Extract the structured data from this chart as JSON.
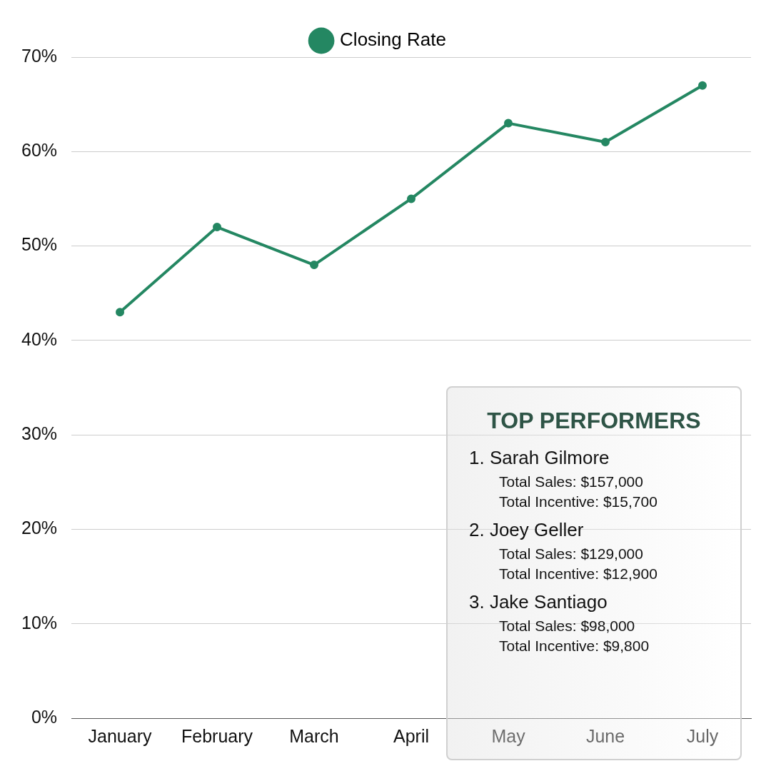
{
  "chart_data": {
    "type": "line",
    "categories": [
      "January",
      "February",
      "March",
      "April",
      "May",
      "June",
      "July"
    ],
    "series": [
      {
        "name": "Closing Rate",
        "color": "#248762",
        "values": [
          43,
          52,
          48,
          55,
          63,
          61,
          67
        ]
      }
    ],
    "ylim": [
      0,
      70
    ],
    "yticks": [
      {
        "value": 0,
        "label": "0%"
      },
      {
        "value": 10,
        "label": "10%"
      },
      {
        "value": 20,
        "label": "20%"
      },
      {
        "value": 30,
        "label": "30%"
      },
      {
        "value": 40,
        "label": "40%"
      },
      {
        "value": 50,
        "label": "50%"
      },
      {
        "value": 60,
        "label": "60%"
      },
      {
        "value": 70,
        "label": "70%"
      }
    ],
    "grid": "y",
    "legend": "top",
    "marker": "circle",
    "line_style": "solid",
    "annotations": [
      "TOP PERFORMERS",
      "1. Sarah Gilmore",
      "Total Sales: $157,000",
      "Total Incentive: $15,700",
      "2. Joey Geller",
      "Total Sales: $129,000",
      "Total Incentive: $12,900",
      "3. Jake Santiago",
      "Total Sales: $98,000",
      "Total Incentive: $9,800"
    ]
  }
}
